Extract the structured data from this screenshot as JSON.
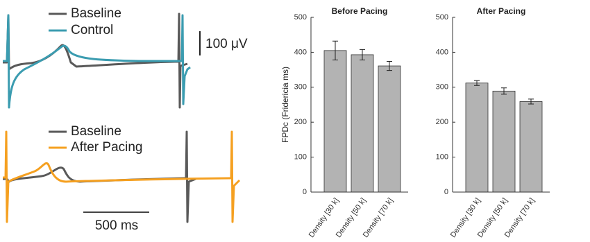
{
  "traces": {
    "top": {
      "legend": [
        "Baseline",
        "Control"
      ],
      "scale_label": "100 μV"
    },
    "bottom": {
      "legend": [
        "Baseline",
        "After Pacing"
      ],
      "scale_label": "500 ms"
    }
  },
  "chart_data": [
    {
      "type": "bar",
      "title": "Before Pacing",
      "y_label": "FPDc (Fridericia ms)",
      "categories": [
        "Density [30 k]",
        "Density [50 k]",
        "Density [70 k]"
      ],
      "values": [
        405,
        393,
        361
      ],
      "errors": [
        27,
        15,
        13
      ],
      "color": "#b3b3b3",
      "ylim": [
        0,
        500
      ],
      "yticks": [
        0,
        100,
        200,
        300,
        400,
        500
      ]
    },
    {
      "type": "bar",
      "title": "After Pacing",
      "categories": [
        "Density [30 k]",
        "Density [50 k]",
        "Density [70 k]"
      ],
      "values": [
        312,
        289,
        259
      ],
      "errors": [
        7,
        9,
        7
      ],
      "color": "#b3b3b3",
      "ylim": [
        0,
        500
      ],
      "yticks": [
        0,
        100,
        200,
        300,
        400,
        500
      ]
    }
  ]
}
